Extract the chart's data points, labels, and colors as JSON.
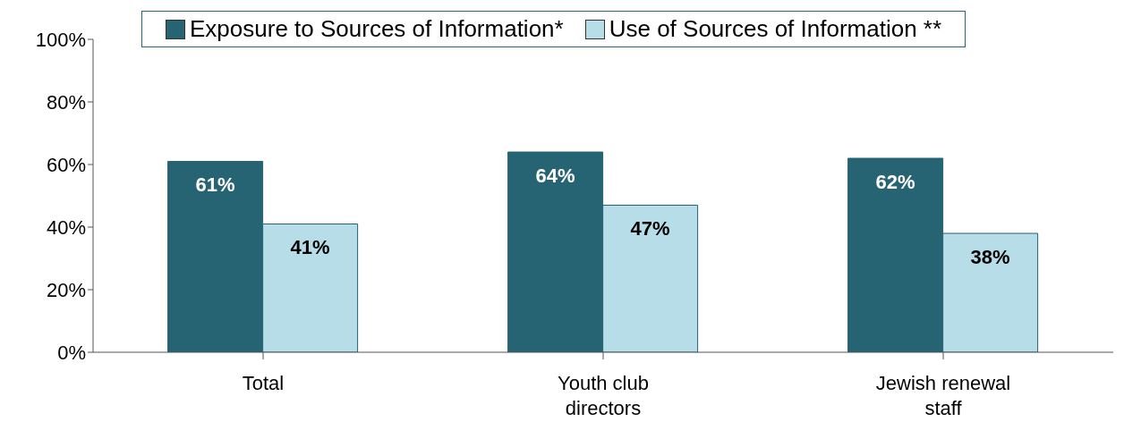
{
  "chart_data": {
    "type": "bar",
    "categories": [
      "Total",
      "Youth club directors",
      "Jewish renewal staff"
    ],
    "series": [
      {
        "name": "Exposure to Sources of Information*",
        "color": "#266373",
        "values": [
          61,
          64,
          62
        ],
        "value_labels": [
          "61%",
          "64%",
          "62%"
        ]
      },
      {
        "name": "Use of Sources of Information **",
        "color": "#b7dde8",
        "values": [
          41,
          47,
          38
        ],
        "value_labels": [
          "41%",
          "47%",
          "38%"
        ]
      }
    ],
    "ylim": [
      0,
      100
    ],
    "yticks": [
      {
        "value": 0,
        "label": "0%"
      },
      {
        "value": 20,
        "label": "20%"
      },
      {
        "value": 40,
        "label": "40%"
      },
      {
        "value": 60,
        "label": "60%"
      },
      {
        "value": 80,
        "label": "80%"
      },
      {
        "value": 100,
        "label": "100%"
      }
    ],
    "legend": "top",
    "grid": false
  }
}
